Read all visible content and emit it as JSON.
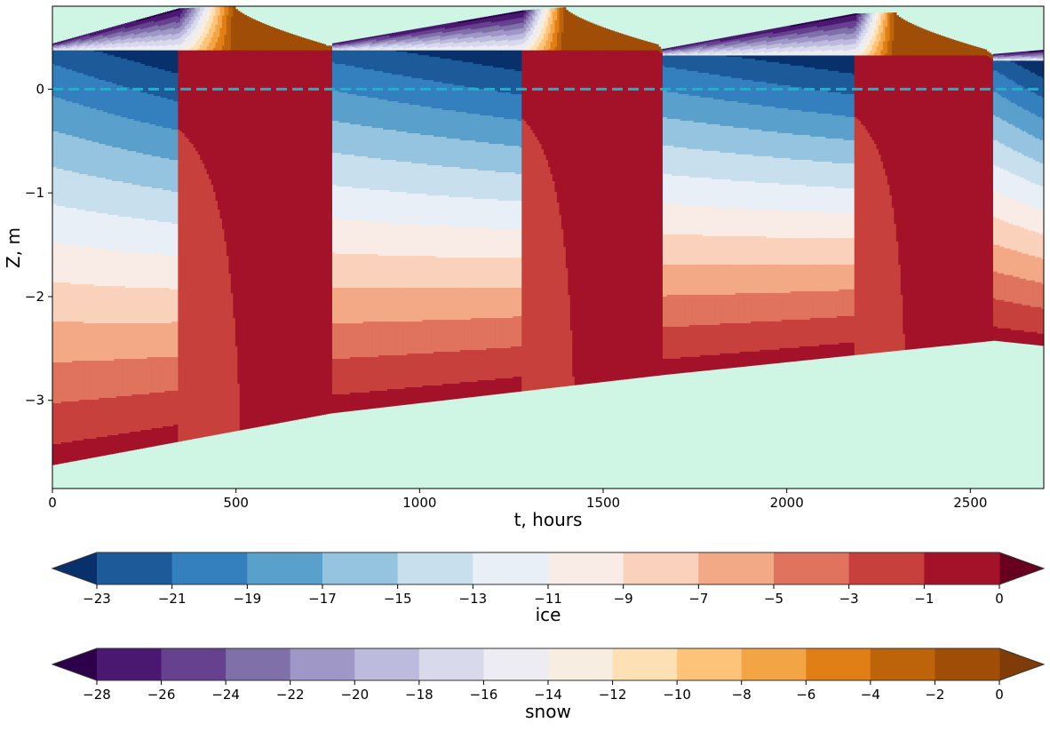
{
  "chart_data": {
    "type": "heatmap",
    "subtype": "filled-contour",
    "title": "",
    "xlabel": "t, hours",
    "ylabel": "Z, m",
    "xlim": [
      0,
      2700
    ],
    "ylim": [
      -3.85,
      0.8
    ],
    "xticks": [
      0,
      500,
      1000,
      1500,
      2000,
      2500
    ],
    "yticks": [
      -3,
      -2,
      -1,
      0
    ],
    "reference_line": {
      "y": 0,
      "style": "dashed",
      "color": "#17b5c8"
    },
    "background_color": "#cff5e5",
    "cycles": [
      {
        "t_start": 0,
        "t_warm": 345,
        "t_peak": 495,
        "t_end": 745,
        "ice_top": 0.38,
        "snow_top_at_warm": 0.78,
        "snow_peak": 0.8,
        "ice_bottom_start": -3.62,
        "ice_bottom_end": -3.12
      },
      {
        "t_start": 760,
        "t_warm": 1280,
        "t_peak": 1395,
        "t_end": 1650,
        "ice_top": 0.38,
        "snow_top_at_warm": 0.76,
        "snow_peak": 0.79,
        "ice_bottom_start": -3.12,
        "ice_bottom_end": -2.75
      },
      {
        "t_start": 1665,
        "t_warm": 2185,
        "t_peak": 2295,
        "t_end": 2545,
        "ice_top": 0.33,
        "snow_top_at_warm": 0.73,
        "snow_peak": 0.74,
        "ice_bottom_start": -2.75,
        "ice_bottom_end": -2.42
      },
      {
        "t_start": 2565,
        "t_warm": 2700,
        "t_peak": 2700,
        "t_end": 2700,
        "ice_top": 0.28,
        "snow_top_at_warm": 0.38,
        "snow_peak": 0.38,
        "ice_bottom_start": -2.42,
        "ice_bottom_end": -2.47
      }
    ],
    "colorbars": [
      {
        "label": "ice",
        "ticks": [
          "−23",
          "−21",
          "−19",
          "−17",
          "−15",
          "−13",
          "−11",
          "−9",
          "−7",
          "−5",
          "−3",
          "−1",
          "0"
        ],
        "levels": [
          -23,
          -21,
          -19,
          -17,
          -15,
          -13,
          -11,
          -9,
          -7,
          -5,
          -3,
          -1,
          0
        ],
        "extend": "both",
        "under_color": "#08306b",
        "over_color": "#67001f",
        "colors": [
          "#1c5a9a",
          "#3480bf",
          "#5aa0cc",
          "#94c4df",
          "#c8dfed",
          "#e8eff6",
          "#f9ece6",
          "#fad2bc",
          "#f3a886",
          "#df735d",
          "#c7403c",
          "#a31228"
        ]
      },
      {
        "label": "snow",
        "ticks": [
          "−28",
          "−26",
          "−24",
          "−22",
          "−20",
          "−18",
          "−16",
          "−14",
          "−12",
          "−10",
          "−8",
          "−6",
          "−4",
          "−2",
          "0"
        ],
        "levels": [
          -28,
          -26,
          -24,
          -22,
          -20,
          -18,
          -16,
          -14,
          -12,
          -10,
          -8,
          -6,
          -4,
          -2,
          0
        ],
        "extend": "both",
        "under_color": "#2d004b",
        "over_color": "#7f3b08",
        "colors": [
          "#4a1871",
          "#66418f",
          "#8070a9",
          "#9f98c6",
          "#bdbbdd",
          "#d9d9ec",
          "#ececf2",
          "#f7ede0",
          "#fde0b3",
          "#fdc379",
          "#f3a445",
          "#e07f16",
          "#bd640b",
          "#a04e07"
        ]
      }
    ]
  }
}
